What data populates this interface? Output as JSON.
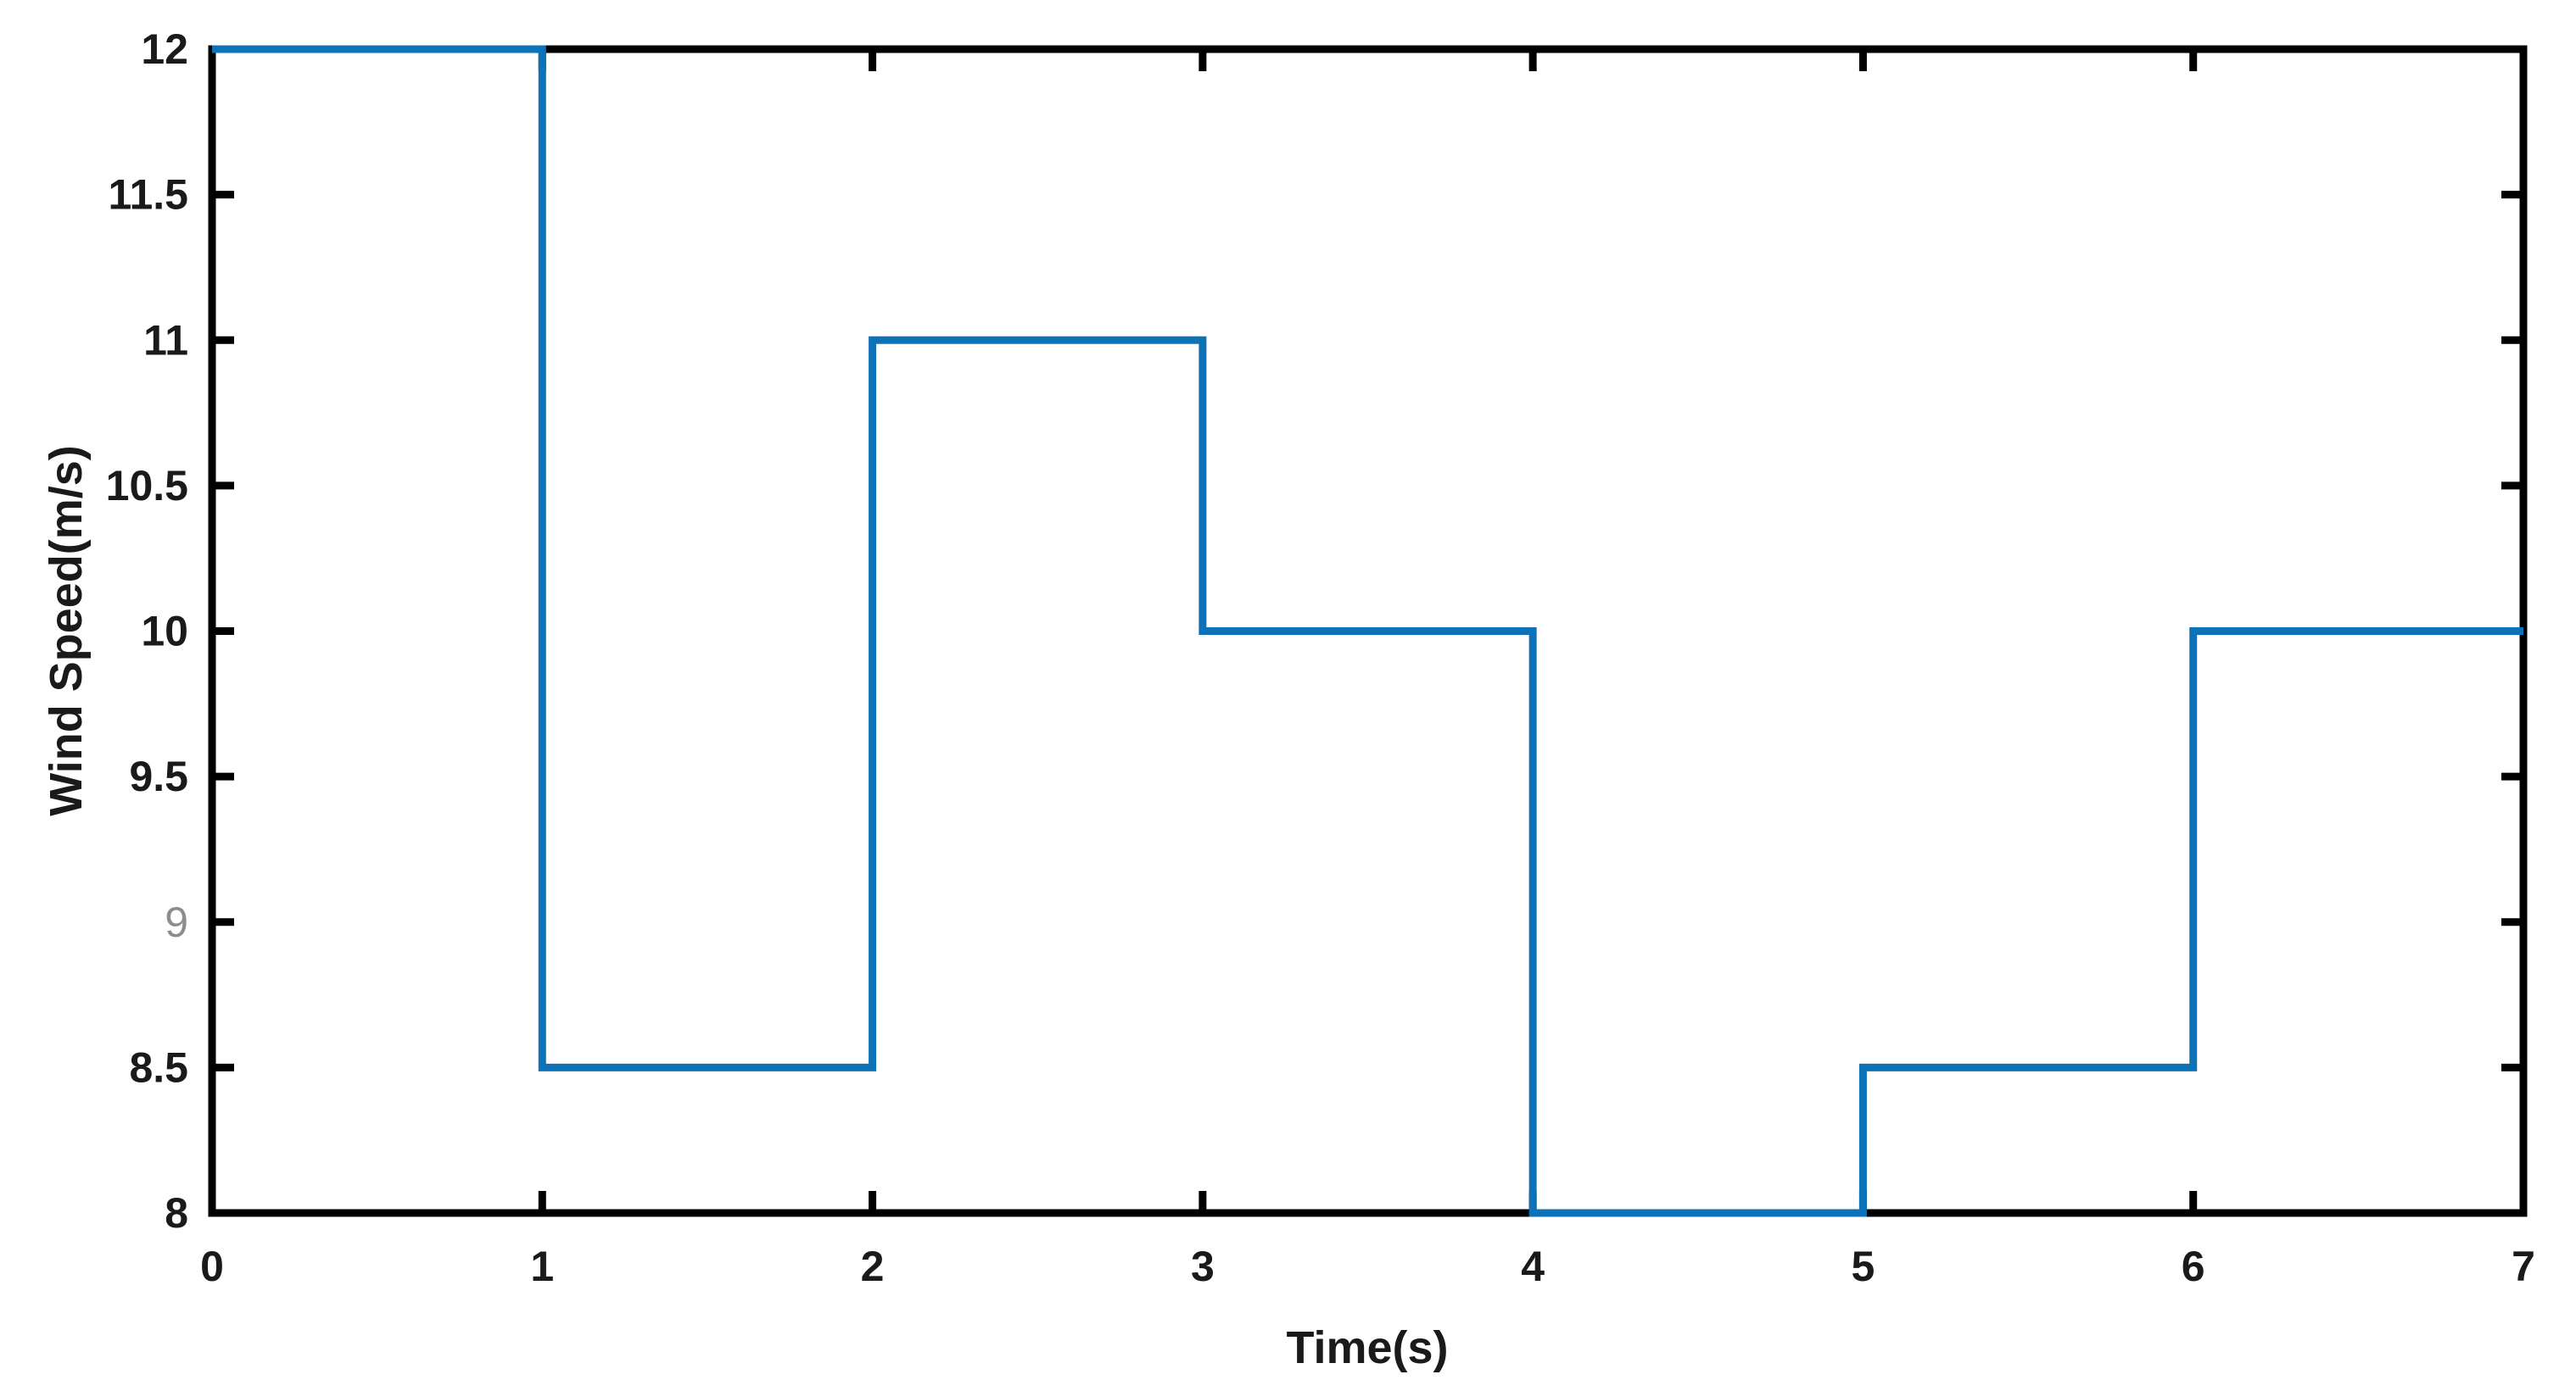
{
  "chart_data": {
    "type": "line",
    "subtype": "step",
    "title": "",
    "xlabel": "Time(s)",
    "ylabel": "Wind Speed(m/s)",
    "xlim": [
      0,
      7
    ],
    "ylim": [
      8,
      12
    ],
    "grid": false,
    "legend": null,
    "x_ticks": [
      {
        "v": 0,
        "label": "0"
      },
      {
        "v": 1,
        "label": "1"
      },
      {
        "v": 2,
        "label": "2"
      },
      {
        "v": 3,
        "label": "3"
      },
      {
        "v": 4,
        "label": "4"
      },
      {
        "v": 5,
        "label": "5"
      },
      {
        "v": 6,
        "label": "6"
      },
      {
        "v": 7,
        "label": "7"
      }
    ],
    "y_ticks": [
      {
        "v": 8,
        "label": "8",
        "muted": false
      },
      {
        "v": 8.5,
        "label": "8.5",
        "muted": false
      },
      {
        "v": 9,
        "label": "9",
        "muted": true
      },
      {
        "v": 9.5,
        "label": "9.5",
        "muted": false
      },
      {
        "v": 10,
        "label": "10",
        "muted": false
      },
      {
        "v": 10.5,
        "label": "10.5",
        "muted": false
      },
      {
        "v": 11,
        "label": "11",
        "muted": false
      },
      {
        "v": 11.5,
        "label": "11.5",
        "muted": false
      },
      {
        "v": 12,
        "label": "12",
        "muted": false
      }
    ],
    "colors": {
      "line": "#0e72b9",
      "axis": "#000000",
      "tick_label": "#1a1a1a",
      "muted_tick_label": "#8d8d8d",
      "background": "#ffffff"
    },
    "series": [
      {
        "name": "wind speed",
        "interval_values": [
          {
            "from": 0,
            "to": 1,
            "value": 12
          },
          {
            "from": 1,
            "to": 2,
            "value": 8.5
          },
          {
            "from": 2,
            "to": 3,
            "value": 11
          },
          {
            "from": 3,
            "to": 4,
            "value": 10
          },
          {
            "from": 4,
            "to": 5,
            "value": 8
          },
          {
            "from": 5,
            "to": 6,
            "value": 8.5
          },
          {
            "from": 6,
            "to": 7,
            "value": 10
          }
        ],
        "points": [
          [
            0,
            12
          ],
          [
            1,
            12
          ],
          [
            1,
            8.5
          ],
          [
            2,
            8.5
          ],
          [
            2,
            11
          ],
          [
            3,
            11
          ],
          [
            3,
            10
          ],
          [
            4,
            10
          ],
          [
            4,
            8
          ],
          [
            5,
            8
          ],
          [
            5,
            8.5
          ],
          [
            6,
            8.5
          ],
          [
            6,
            10
          ],
          [
            7,
            10
          ]
        ]
      }
    ]
  }
}
